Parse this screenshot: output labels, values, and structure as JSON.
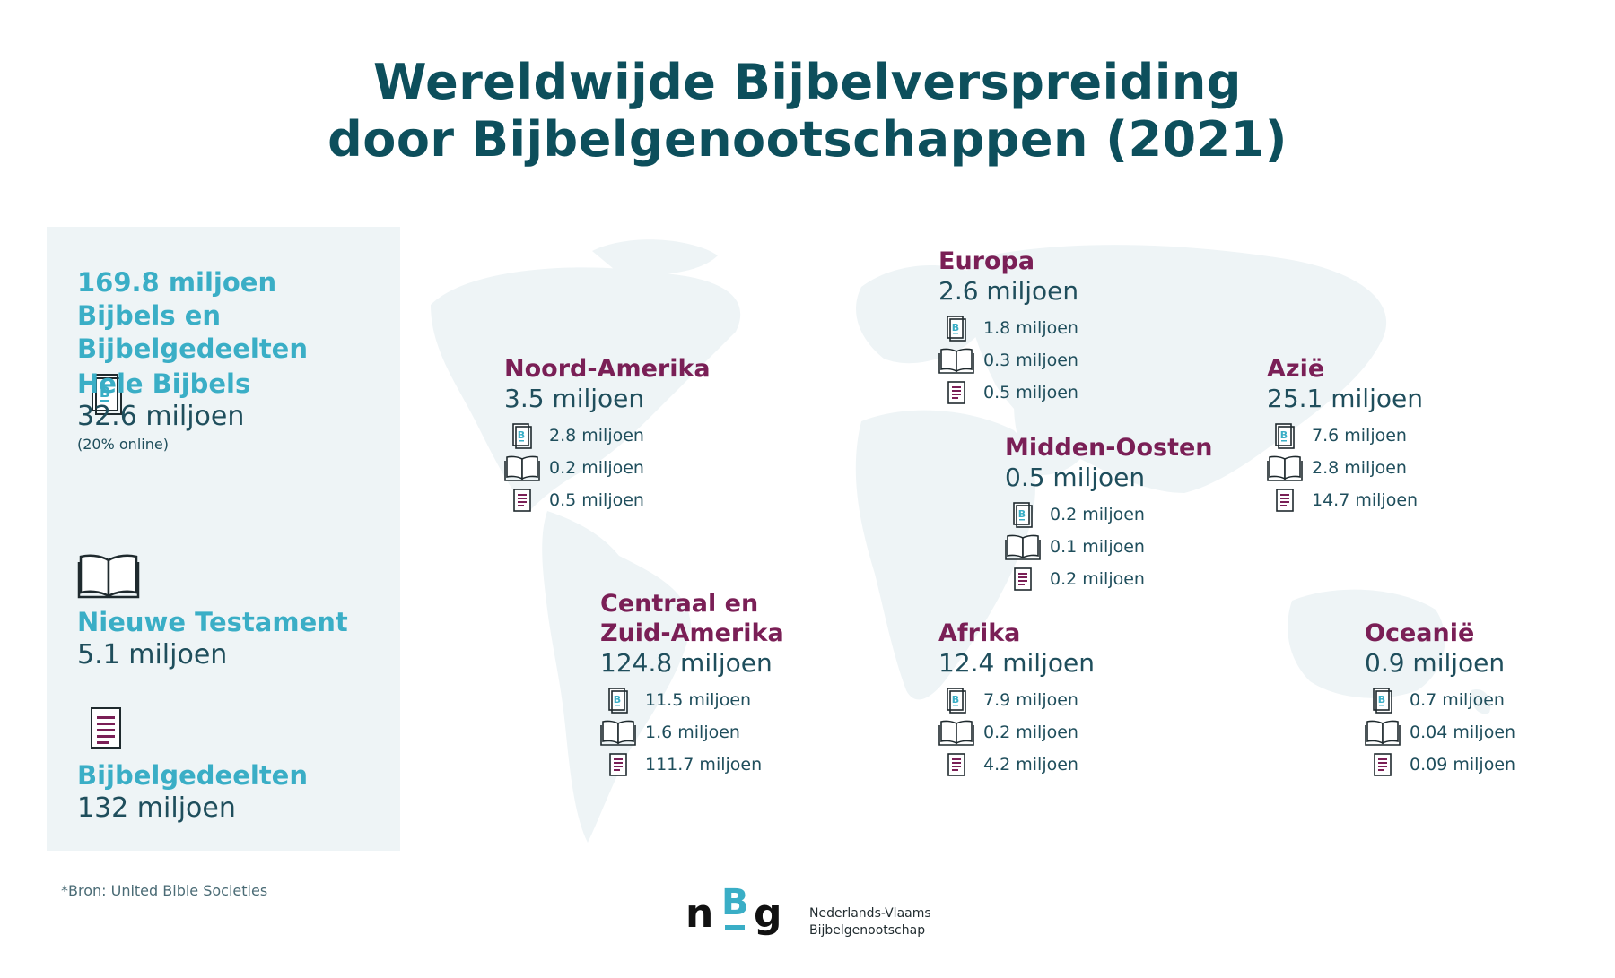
{
  "title": {
    "line1": "Wereldwijde Bijbelverspreiding",
    "line2": "door Bijbelgenootschappen (2021)"
  },
  "summary": {
    "total": "169.8 miljoen Bijbels en Bijbelgedeelten",
    "whole_bibles": {
      "label": "Hele Bijbels",
      "value": "32.6 miljoen",
      "note": "(20% online)",
      "icon": "bible-icon"
    },
    "new_testament": {
      "label": "Nieuwe Testament",
      "value": "5.1 miljoen",
      "icon": "open-book-icon"
    },
    "portions": {
      "label": "Bijbelgedeelten",
      "value": "132 miljoen",
      "icon": "document-icon"
    }
  },
  "regions": [
    {
      "id": "noord-amerika",
      "name": "Noord-Amerika",
      "total": "3.5 miljoen",
      "bibles": "2.8 miljoen",
      "nt": "0.2 miljoen",
      "portions": "0.5 miljoen"
    },
    {
      "id": "centraal-zuid-amerika",
      "name": "Centraal en Zuid-Amerika",
      "total": "124.8 miljoen",
      "bibles": "11.5 miljoen",
      "nt": "1.6 miljoen",
      "portions": "111.7 miljoen"
    },
    {
      "id": "europa",
      "name": "Europa",
      "total": "2.6 miljoen",
      "bibles": "1.8 miljoen",
      "nt": "0.3 miljoen",
      "portions": "0.5 miljoen"
    },
    {
      "id": "midden-oosten",
      "name": "Midden-Oosten",
      "total": "0.5 miljoen",
      "bibles": "0.2 miljoen",
      "nt": "0.1 miljoen",
      "portions": "0.2 miljoen"
    },
    {
      "id": "afrika",
      "name": "Afrika",
      "total": "12.4 miljoen",
      "bibles": "7.9 miljoen",
      "nt": "0.2 miljoen",
      "portions": "4.2 miljoen"
    },
    {
      "id": "azie",
      "name": "Azië",
      "total": "25.1 miljoen",
      "bibles": "7.6 miljoen",
      "nt": "2.8 miljoen",
      "portions": "14.7 miljoen"
    },
    {
      "id": "oceanie",
      "name": "Oceanië",
      "total": "0.9 miljoen",
      "bibles": "0.7 miljoen",
      "nt": "0.04 miljoen",
      "portions": "0.09 miljoen"
    }
  ],
  "footer": {
    "source": "*Bron: United Bible Societies",
    "logo_text": "nBg",
    "org_line1": "Nederlands-Vlaams",
    "org_line2": "Bijbelgenootschap"
  },
  "colors": {
    "title": "#0d4f5c",
    "accent_blue": "#3aaec6",
    "region_name": "#7a1f56",
    "text": "#1f4e5c",
    "panel_bg": "#eef4f6",
    "map": "#eef4f6"
  }
}
